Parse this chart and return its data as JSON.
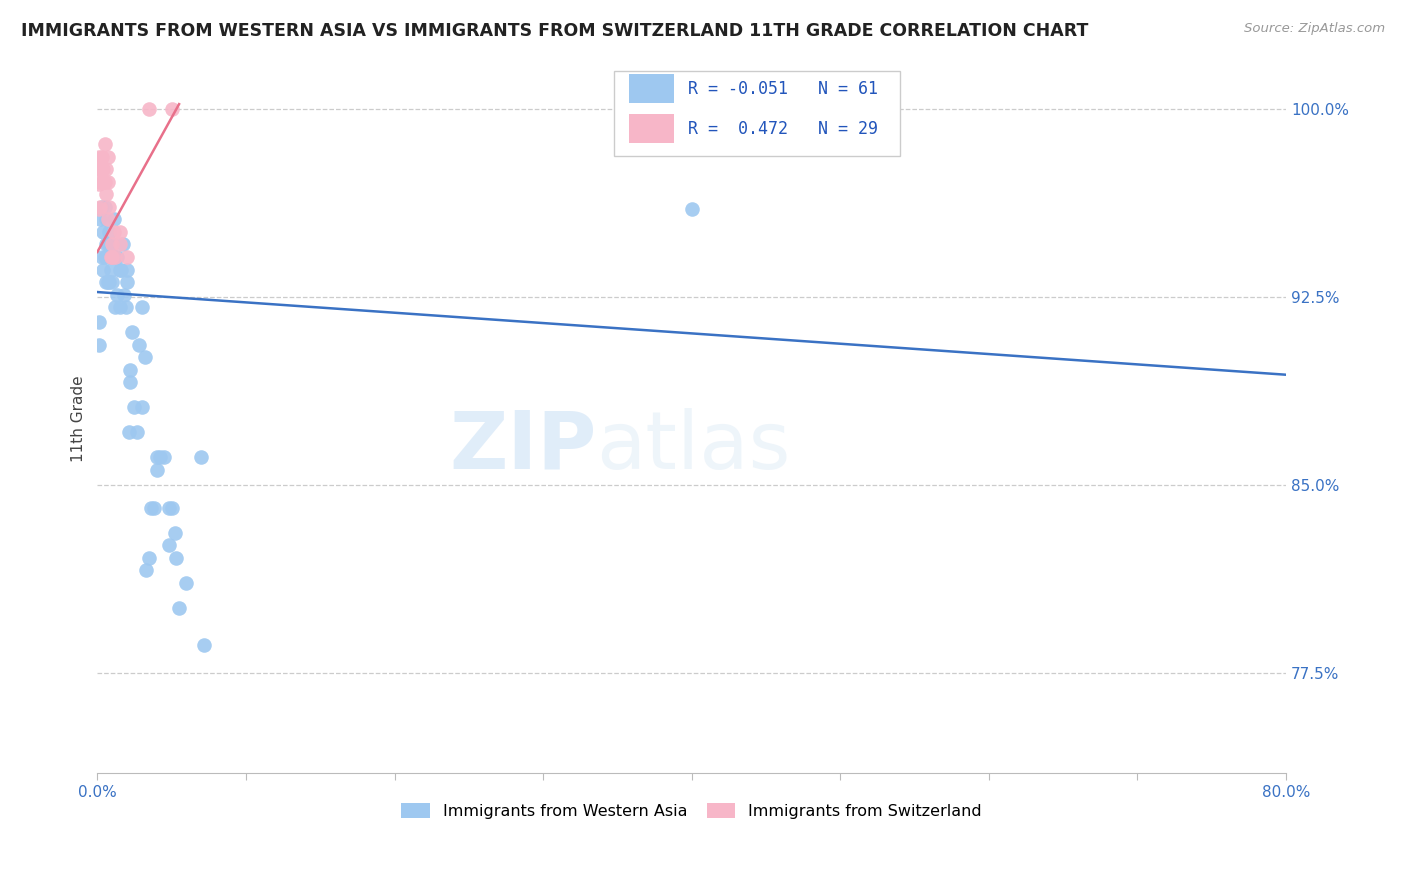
{
  "title": "IMMIGRANTS FROM WESTERN ASIA VS IMMIGRANTS FROM SWITZERLAND 11TH GRADE CORRELATION CHART",
  "source": "Source: ZipAtlas.com",
  "ylabel": "11th Grade",
  "ylabel_ticks": [
    0.775,
    0.85,
    0.925,
    1.0
  ],
  "ylabel_tick_labels": [
    "77.5%",
    "85.0%",
    "92.5%",
    "100.0%"
  ],
  "xmin": 0.0,
  "xmax": 0.8,
  "ymin": 0.735,
  "ymax": 1.018,
  "blue_R": -0.051,
  "blue_N": 61,
  "pink_R": 0.472,
  "pink_N": 29,
  "blue_color": "#9ec8f0",
  "pink_color": "#f7b6c8",
  "blue_line_color": "#3a72c4",
  "pink_line_color": "#e8708a",
  "blue_scatter": [
    [
      0.001,
      0.915
    ],
    [
      0.002,
      0.956
    ],
    [
      0.003,
      0.961
    ],
    [
      0.003,
      0.941
    ],
    [
      0.004,
      0.936
    ],
    [
      0.004,
      0.951
    ],
    [
      0.005,
      0.941
    ],
    [
      0.005,
      0.961
    ],
    [
      0.006,
      0.946
    ],
    [
      0.006,
      0.931
    ],
    [
      0.006,
      0.956
    ],
    [
      0.007,
      0.931
    ],
    [
      0.007,
      0.946
    ],
    [
      0.008,
      0.931
    ],
    [
      0.008,
      0.951
    ],
    [
      0.009,
      0.941
    ],
    [
      0.009,
      0.936
    ],
    [
      0.01,
      0.946
    ],
    [
      0.01,
      0.931
    ],
    [
      0.011,
      0.956
    ],
    [
      0.012,
      0.941
    ],
    [
      0.012,
      0.921
    ],
    [
      0.013,
      0.926
    ],
    [
      0.013,
      0.941
    ],
    [
      0.015,
      0.921
    ],
    [
      0.015,
      0.936
    ],
    [
      0.016,
      0.936
    ],
    [
      0.017,
      0.946
    ],
    [
      0.018,
      0.926
    ],
    [
      0.019,
      0.921
    ],
    [
      0.02,
      0.931
    ],
    [
      0.02,
      0.936
    ],
    [
      0.021,
      0.871
    ],
    [
      0.022,
      0.891
    ],
    [
      0.022,
      0.896
    ],
    [
      0.023,
      0.911
    ],
    [
      0.025,
      0.881
    ],
    [
      0.027,
      0.871
    ],
    [
      0.028,
      0.906
    ],
    [
      0.03,
      0.921
    ],
    [
      0.03,
      0.881
    ],
    [
      0.032,
      0.901
    ],
    [
      0.033,
      0.816
    ],
    [
      0.035,
      0.821
    ],
    [
      0.036,
      0.841
    ],
    [
      0.038,
      0.841
    ],
    [
      0.04,
      0.856
    ],
    [
      0.04,
      0.861
    ],
    [
      0.042,
      0.861
    ],
    [
      0.045,
      0.861
    ],
    [
      0.048,
      0.841
    ],
    [
      0.048,
      0.826
    ],
    [
      0.05,
      0.841
    ],
    [
      0.052,
      0.831
    ],
    [
      0.053,
      0.821
    ],
    [
      0.055,
      0.801
    ],
    [
      0.06,
      0.811
    ],
    [
      0.07,
      0.861
    ],
    [
      0.072,
      0.786
    ],
    [
      0.4,
      0.96
    ],
    [
      0.001,
      0.906
    ]
  ],
  "pink_scatter": [
    [
      0.001,
      0.96
    ],
    [
      0.001,
      0.97
    ],
    [
      0.001,
      0.976
    ],
    [
      0.001,
      0.981
    ],
    [
      0.002,
      0.961
    ],
    [
      0.002,
      0.976
    ],
    [
      0.002,
      0.971
    ],
    [
      0.003,
      0.976
    ],
    [
      0.003,
      0.981
    ],
    [
      0.004,
      0.971
    ],
    [
      0.004,
      0.976
    ],
    [
      0.005,
      0.971
    ],
    [
      0.005,
      0.986
    ],
    [
      0.006,
      0.976
    ],
    [
      0.006,
      0.966
    ],
    [
      0.007,
      0.981
    ],
    [
      0.007,
      0.971
    ],
    [
      0.007,
      0.956
    ],
    [
      0.008,
      0.961
    ],
    [
      0.009,
      0.941
    ],
    [
      0.01,
      0.941
    ],
    [
      0.01,
      0.946
    ],
    [
      0.011,
      0.951
    ],
    [
      0.012,
      0.941
    ],
    [
      0.015,
      0.946
    ],
    [
      0.015,
      0.951
    ],
    [
      0.02,
      0.941
    ],
    [
      0.035,
      1.0
    ],
    [
      0.05,
      1.0
    ]
  ],
  "blue_trend_x": [
    0.0,
    0.8
  ],
  "blue_trend_y": [
    0.927,
    0.894
  ],
  "pink_trend_x": [
    0.0,
    0.055
  ],
  "pink_trend_y": [
    0.943,
    1.002
  ],
  "watermark_zip": "ZIP",
  "watermark_atlas": "atlas",
  "legend_label_blue": "Immigrants from Western Asia",
  "legend_label_pink": "Immigrants from Switzerland",
  "background_color": "#ffffff",
  "grid_color": "#cccccc",
  "title_color": "#222222",
  "tick_color_blue": "#3a72c4",
  "source_color": "#999999"
}
